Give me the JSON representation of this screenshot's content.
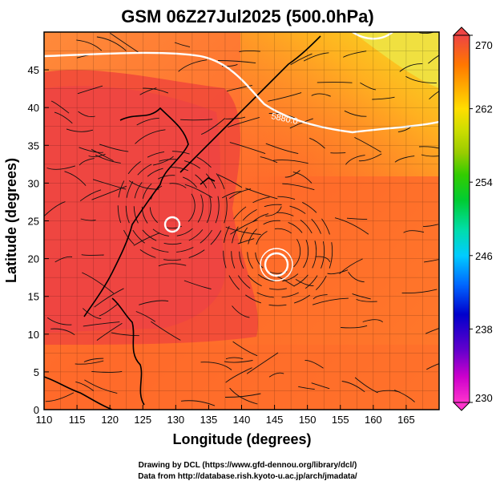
{
  "title": "GSM 06Z27Jul2025 (500.0hPa)",
  "xlabel": "Longitude (degrees)",
  "ylabel": "Latitude  (degrees)",
  "contour_label": "5880.0",
  "credits": {
    "line1": "Drawing by DCL (https://www.gfd-dennou.org/library/dcl/)",
    "line2": "Data from http://database.rish.kyoto-u.ac.jp/arch/jmadata/"
  },
  "map": {
    "lon_range": [
      110,
      170
    ],
    "lat_range": [
      0,
      50
    ],
    "x_ticks": [
      "110",
      "115",
      "120",
      "125",
      "130",
      "135",
      "140",
      "145",
      "150",
      "155",
      "160",
      "165"
    ],
    "y_ticks": [
      "0",
      "5",
      "10",
      "15",
      "20",
      "25",
      "30",
      "35",
      "40",
      "45"
    ],
    "typhoon_centers": [
      {
        "lon": 129.5,
        "lat": 27
      },
      {
        "lon": 145.5,
        "lat": 21
      }
    ]
  },
  "colorbar": {
    "ticks": [
      "230",
      "238",
      "246",
      "254",
      "262",
      "270"
    ],
    "range": [
      230,
      270
    ],
    "colors": [
      "#ff33cc",
      "#cc00cc",
      "#6600cc",
      "#0000cc",
      "#0066ff",
      "#00ccff",
      "#00ddaa",
      "#00cc33",
      "#33cc00",
      "#99cc00",
      "#ccdd00",
      "#ffdd00",
      "#ffaa00",
      "#ff7700",
      "#ff4422",
      "#ee4444"
    ]
  }
}
